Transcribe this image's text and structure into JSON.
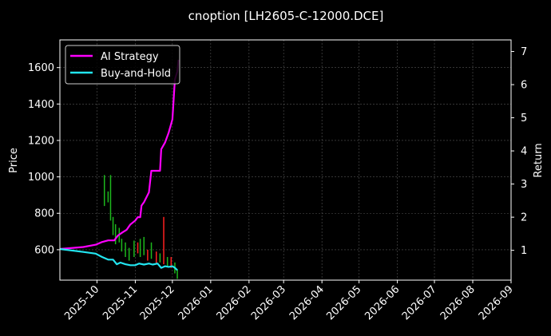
{
  "chart_data": {
    "type": "line",
    "title": "cnoption [LH2605-C-12000.DCE]",
    "ylabel": "Price",
    "y2label": "Return",
    "xlabel": "",
    "x_ticks": [
      "2025-10",
      "2025-11",
      "2025-12",
      "2026-01",
      "2026-02",
      "2026-03",
      "2026-04",
      "2026-05",
      "2026-06",
      "2026-07",
      "2026-08",
      "2026-09"
    ],
    "x_range": [
      "2025-09-01",
      "2026-09-01"
    ],
    "y_ticks": [
      600,
      800,
      1000,
      1200,
      1400,
      1600
    ],
    "ylim": [
      433,
      1752
    ],
    "y2_ticks": [
      1,
      2,
      3,
      4,
      5,
      6,
      7
    ],
    "y2lim": [
      0.1,
      7.35
    ],
    "grid": true,
    "legend_position": "top-left",
    "colors": {
      "background": "#000000",
      "strategy": "#ff00ff",
      "buyhold": "#22e5f0",
      "candle_up": "#ff2020",
      "candle_down": "#1db81d",
      "grid": "#555555",
      "text": "#ffffff"
    },
    "series": [
      {
        "name": "AI Strategy",
        "axis": "right",
        "x": [
          "2025-09-01",
          "2025-09-20",
          "2025-09-30",
          "2025-10-05",
          "2025-10-10",
          "2025-10-15",
          "2025-10-18",
          "2025-10-22",
          "2025-10-25",
          "2025-10-28",
          "2025-11-01",
          "2025-11-03",
          "2025-11-05",
          "2025-11-06",
          "2025-11-08",
          "2025-11-12",
          "2025-11-14",
          "2025-11-17",
          "2025-11-21",
          "2025-11-22",
          "2025-11-25",
          "2025-11-28",
          "2025-12-01",
          "2025-12-03",
          "2025-12-05",
          "2025-12-06"
        ],
        "values": [
          1.04,
          1.1,
          1.17,
          1.25,
          1.3,
          1.3,
          1.45,
          1.55,
          1.62,
          1.78,
          1.9,
          2.0,
          2.0,
          2.35,
          2.45,
          2.75,
          3.4,
          3.4,
          3.4,
          4.05,
          4.25,
          4.55,
          4.95,
          6.15,
          6.4,
          6.75
        ]
      },
      {
        "name": "Buy-and-Hold",
        "axis": "right",
        "x": [
          "2025-09-01",
          "2025-09-20",
          "2025-09-30",
          "2025-10-05",
          "2025-10-10",
          "2025-10-14",
          "2025-10-17",
          "2025-10-20",
          "2025-10-24",
          "2025-10-28",
          "2025-11-01",
          "2025-11-04",
          "2025-11-08",
          "2025-11-12",
          "2025-11-15",
          "2025-11-19",
          "2025-11-22",
          "2025-11-25",
          "2025-11-28",
          "2025-12-01",
          "2025-12-03",
          "2025-12-05"
        ],
        "values": [
          1.04,
          0.95,
          0.9,
          0.8,
          0.72,
          0.72,
          0.58,
          0.63,
          0.58,
          0.55,
          0.55,
          0.6,
          0.57,
          0.6,
          0.57,
          0.6,
          0.47,
          0.52,
          0.5,
          0.52,
          0.47,
          0.4
        ]
      }
    ],
    "candles": [
      {
        "x": "2025-10-07",
        "low": 840,
        "high": 1010,
        "up": false
      },
      {
        "x": "2025-10-10",
        "low": 860,
        "high": 920,
        "up": false
      },
      {
        "x": "2025-10-12",
        "low": 760,
        "high": 1010,
        "up": false
      },
      {
        "x": "2025-10-14",
        "low": 680,
        "high": 780,
        "up": false
      },
      {
        "x": "2025-10-16",
        "low": 630,
        "high": 740,
        "up": false
      },
      {
        "x": "2025-10-19",
        "low": 640,
        "high": 720,
        "up": false
      },
      {
        "x": "2025-10-21",
        "low": 590,
        "high": 660,
        "up": false
      },
      {
        "x": "2025-10-24",
        "low": 560,
        "high": 640,
        "up": false
      },
      {
        "x": "2025-10-27",
        "low": 540,
        "high": 610,
        "up": false
      },
      {
        "x": "2025-10-31",
        "low": 560,
        "high": 650,
        "up": false
      },
      {
        "x": "2025-11-03",
        "low": 580,
        "high": 640,
        "up": true
      },
      {
        "x": "2025-11-05",
        "low": 560,
        "high": 660,
        "up": false
      },
      {
        "x": "2025-11-08",
        "low": 570,
        "high": 670,
        "up": false
      },
      {
        "x": "2025-11-11",
        "low": 540,
        "high": 600,
        "up": true
      },
      {
        "x": "2025-11-14",
        "low": 550,
        "high": 640,
        "up": false
      },
      {
        "x": "2025-11-18",
        "low": 520,
        "high": 590,
        "up": true
      },
      {
        "x": "2025-11-21",
        "low": 530,
        "high": 580,
        "up": false
      },
      {
        "x": "2025-11-24",
        "low": 520,
        "high": 780,
        "up": true
      },
      {
        "x": "2025-11-27",
        "low": 510,
        "high": 560,
        "up": false
      },
      {
        "x": "2025-11-30",
        "low": 500,
        "high": 560,
        "up": true
      },
      {
        "x": "2025-12-03",
        "low": 470,
        "high": 530,
        "up": false
      },
      {
        "x": "2025-12-05",
        "low": 440,
        "high": 490,
        "up": false
      }
    ]
  }
}
